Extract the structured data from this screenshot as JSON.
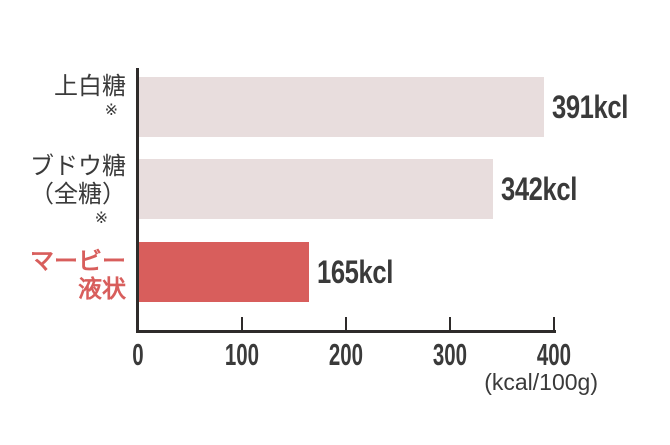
{
  "chart_data": {
    "type": "bar",
    "orientation": "horizontal",
    "title": "",
    "xlabel": "",
    "ylabel": "",
    "unit_label": "(kcal/100g)",
    "xlim": [
      0,
      400
    ],
    "x_ticks": [
      0,
      100,
      200,
      300,
      400
    ],
    "grid": false,
    "legend": false,
    "categories": [
      "上白糖 ※",
      "ブドウ糖（全糖）※",
      "マービー液状"
    ],
    "values": [
      391,
      342,
      165
    ],
    "bars": [
      {
        "label_lines": [
          "上白糖"
        ],
        "footnote": "※",
        "value": 391,
        "value_label": "391kcl",
        "bar_color": "#e8dddd",
        "label_color": "#3a3a3a",
        "label_bold": false
      },
      {
        "label_lines": [
          "ブドウ糖",
          "（全糖）"
        ],
        "footnote": "※",
        "value": 342,
        "value_label": "342kcl",
        "bar_color": "#e8dddd",
        "label_color": "#3a3a3a",
        "label_bold": false
      },
      {
        "label_lines": [
          "マービー",
          "液状"
        ],
        "footnote": "",
        "value": 165,
        "value_label": "165kcl",
        "bar_color": "#d85e5c",
        "label_color": "#d85e5c",
        "label_bold": true
      }
    ],
    "colors": {
      "accent_red": "#d85e5c",
      "bar_pink": "#e8dddd",
      "text_dark": "#3a3a3a",
      "axis": "#2e2b2a",
      "background": "#ffffff"
    }
  }
}
